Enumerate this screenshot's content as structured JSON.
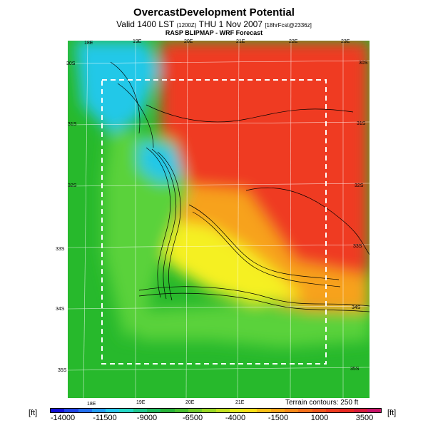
{
  "header": {
    "title": "OvercastDevelopment Potential",
    "valid_prefix": "Valid 1400 LST",
    "valid_code": "(1200Z)",
    "valid_date": "THU 1 Nov 2007",
    "fcst_tag": "[18hrFcst@2336z]",
    "subtitle": "RASP BLIPMAP - WRF Forecast"
  },
  "map": {
    "lon_labels": [
      "18E",
      "19E",
      "20E",
      "21E",
      "22E",
      "23E"
    ],
    "lat_labels": [
      "30S",
      "31S",
      "32S",
      "33S",
      "34S",
      "35S"
    ],
    "terrain_note": "Terrain contours: 250 ft",
    "colors": {
      "ocean": "#27b92c",
      "coast_green": "#5ad23a",
      "cyan": "#24c8e8",
      "yellow": "#f5f020",
      "orange": "#f7a21a",
      "red": "#ef3a20",
      "dashed_box": "#ffffff"
    }
  },
  "legend": {
    "unit_left": "[ft]",
    "unit_right": "[ft]",
    "ticks": [
      "-14000",
      "-11500",
      "-9000",
      "-6500",
      "-4000",
      "-1500",
      "1000",
      "3500"
    ],
    "colors": [
      "#1010d8",
      "#1f44e8",
      "#2370f0",
      "#259ef2",
      "#27c6ee",
      "#26d8c6",
      "#22c890",
      "#1ebc60",
      "#28b23a",
      "#48c030",
      "#74cc2c",
      "#9ad826",
      "#c2e020",
      "#e6ea1c",
      "#f8e018",
      "#f8c018",
      "#f8a418",
      "#f68a1a",
      "#f4701c",
      "#f0561e",
      "#ee3c20",
      "#e82822",
      "#d81c3c",
      "#c8146a"
    ]
  }
}
